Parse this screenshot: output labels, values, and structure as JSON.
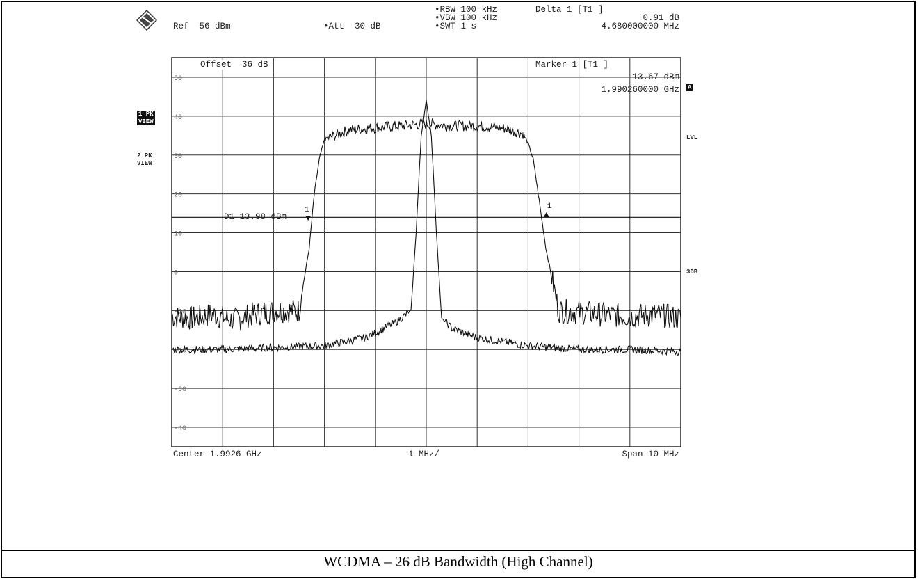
{
  "header": {
    "ref": "Ref  56 dBm",
    "att": "•Att  30 dB",
    "rbw": "•RBW 100 kHz",
    "vbw": "•VBW 100 kHz",
    "swt": "•SWT 1 s",
    "delta_title": "Delta 1 [T1 ]",
    "delta_value": "0.91 dB",
    "delta_freq": "4.680000000 MHz"
  },
  "overlay": {
    "offset": "Offset  36 dB",
    "marker_title": "Marker 1 [T1 ]",
    "marker_value": "13.67 dBm",
    "marker_freq": "1.990260000 GHz",
    "display_line": "D1 13.98 dBm"
  },
  "side_left": {
    "trace1": "1 PK",
    "trace1_mode": "VIEW",
    "trace2": "2 PK",
    "trace2_mode": "VIEW"
  },
  "side_right": {
    "a_badge": "A",
    "lvl": "LVL",
    "db3": "3DB"
  },
  "footer": {
    "center": "Center 1.9926 GHz",
    "div": "1 MHz/",
    "span": "Span 10 MHz"
  },
  "caption": "WCDMA – 26 dB Bandwidth (High Channel)",
  "chart_data": {
    "type": "line",
    "ylim": [
      -45,
      55
    ],
    "xlim": [
      -5,
      5
    ],
    "yticks": [
      50,
      40,
      30,
      20,
      10,
      0,
      -10,
      -20,
      -30,
      -40
    ],
    "ytick_labels": [
      "50",
      "40",
      "30",
      "20",
      "10",
      "0",
      "-10",
      "-20",
      "-30",
      "-40"
    ],
    "display_line_dbm": 13.98,
    "grid": true,
    "series": [
      {
        "x": [
          -5.0,
          -4.6,
          -4.2,
          -3.8,
          -3.4,
          -2.95,
          -2.5,
          -2.3,
          -2.2,
          -2.1,
          -2.0,
          -1.5,
          -1.0,
          -0.5,
          0.0,
          0.5,
          1.0,
          1.5,
          1.9,
          2.0,
          2.1,
          2.2,
          2.35,
          2.6,
          3.0,
          3.5,
          4.0,
          4.5,
          5.0
        ],
        "y": [
          -11.5,
          -12.0,
          -11.0,
          -12.5,
          -11.0,
          -10.0,
          -10.0,
          6.0,
          20.0,
          29.0,
          34.0,
          36.5,
          37.0,
          37.5,
          38.0,
          37.5,
          37.5,
          37.0,
          35.5,
          33.0,
          29.0,
          20.0,
          6.0,
          -10.0,
          -10.5,
          -11.0,
          -11.5,
          -11.0,
          -12.0
        ]
      },
      {
        "x": [
          -5.0,
          -4.0,
          -3.0,
          -2.0,
          -1.2,
          -0.6,
          -0.3,
          -0.2,
          -0.1,
          0.0,
          0.1,
          0.2,
          0.3,
          0.5,
          1.0,
          2.0,
          3.0,
          4.0,
          5.0
        ],
        "y": [
          -20.0,
          -20.0,
          -19.5,
          -19.0,
          -17.0,
          -13.0,
          -10.0,
          10.0,
          35.0,
          44.0,
          35.0,
          10.0,
          -12.0,
          -14.5,
          -17.0,
          -19.0,
          -20.0,
          -20.0,
          -20.5
        ]
      }
    ],
    "markers": [
      {
        "label": "1",
        "x": -2.32,
        "y": 13.67
      },
      {
        "label": "1",
        "x": 2.36,
        "y": 14.58
      }
    ]
  }
}
